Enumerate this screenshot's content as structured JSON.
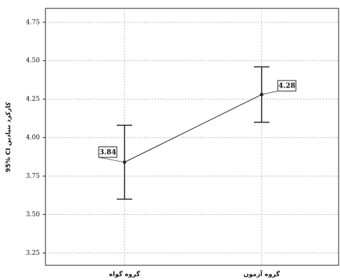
{
  "chart_data": {
    "type": "errorbar-line",
    "y_label": "95% CI کارکرد بنیادین",
    "categories": [
      "گروه گواه",
      "گروه آزمون"
    ],
    "values": [
      3.84,
      4.28
    ],
    "ci_lower": [
      3.6,
      4.1
    ],
    "ci_upper": [
      4.08,
      4.46
    ],
    "color": "#222222",
    "ylim": [
      3.17,
      4.84
    ],
    "yticks": [
      3.25,
      {
        "value": 3.5,
        "label": "3.50"
      },
      3.75,
      {
        "value": 4.0,
        "label": "4.00"
      },
      4.25,
      {
        "value": 4.5,
        "label": "4.50"
      },
      4.75
    ],
    "grid": true
  }
}
